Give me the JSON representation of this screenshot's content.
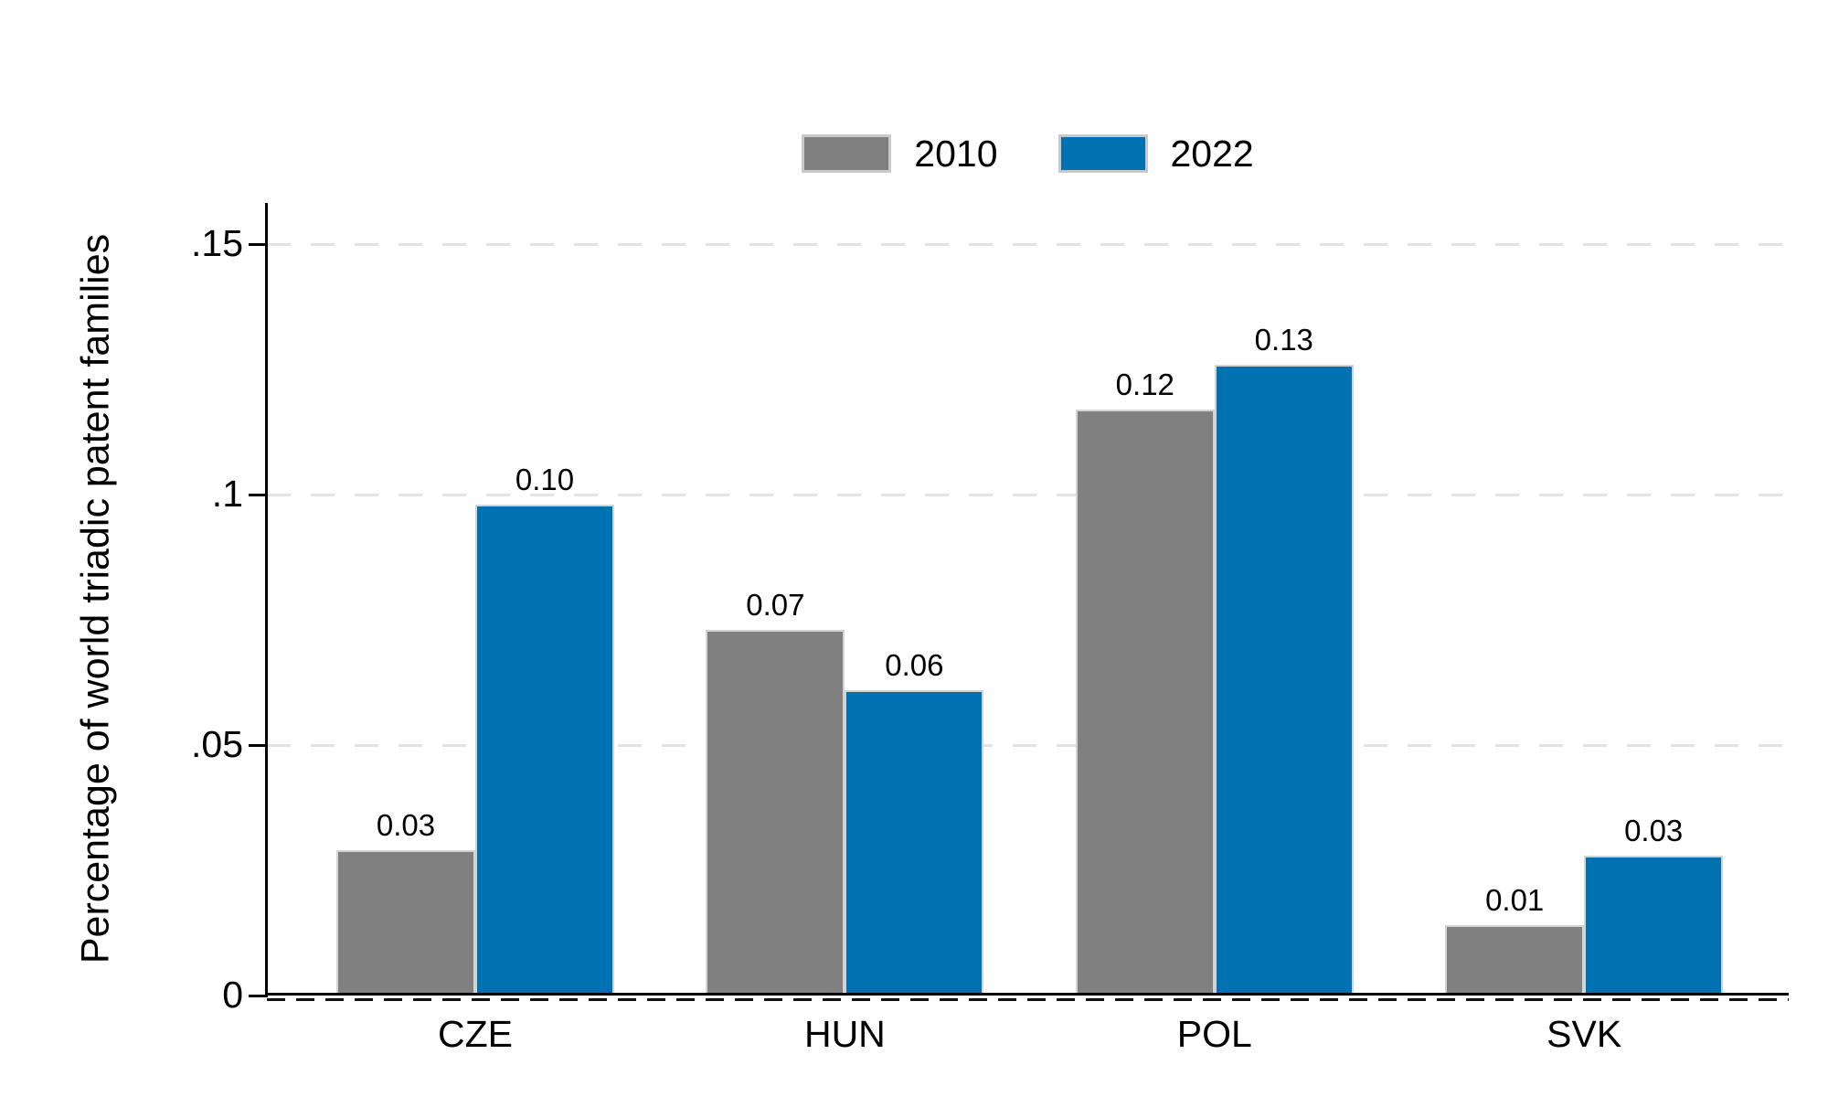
{
  "chart_data": {
    "type": "bar",
    "title": "",
    "ylabel": "Percentage of world triadic patent families",
    "xlabel": "",
    "categories": [
      "CZE",
      "HUN",
      "POL",
      "SVK"
    ],
    "series": [
      {
        "name": "2010",
        "color": "#808080",
        "values": [
          0.029,
          0.073,
          0.117,
          0.014
        ],
        "bar_labels": [
          "0.03",
          "0.07",
          "0.12",
          "0.01"
        ]
      },
      {
        "name": "2022",
        "color": "#0072b2",
        "values": [
          0.098,
          0.061,
          0.126,
          0.028
        ],
        "bar_labels": [
          "0.10",
          "0.06",
          "0.13",
          "0.03"
        ]
      }
    ],
    "y_ticks": [
      {
        "value": 0,
        "label": "0"
      },
      {
        "value": 0.05,
        "label": ".05"
      },
      {
        "value": 0.1,
        "label": ".1"
      },
      {
        "value": 0.15,
        "label": ".15"
      }
    ],
    "ylim": [
      0,
      0.158
    ],
    "grid": "horizontal-dashed",
    "legend_position": "top-center"
  },
  "legend": {
    "items": [
      {
        "label": "2010",
        "color": "#808080"
      },
      {
        "label": "2022",
        "color": "#0072b2"
      }
    ]
  },
  "colors": {
    "bar_2010": "#808080",
    "bar_2022": "#0072b2",
    "bar_outline": "#d4d4d4",
    "gridline": "#e3e3e3",
    "axis": "#000000",
    "text": "#000000",
    "background": "#ffffff"
  }
}
